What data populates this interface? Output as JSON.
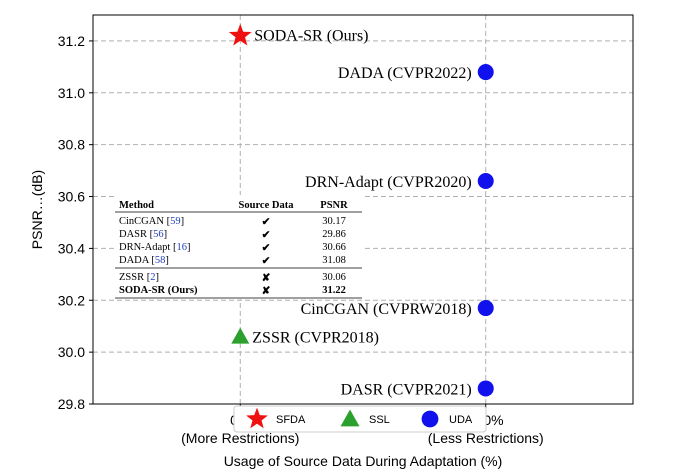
{
  "chart_data": {
    "type": "scatter",
    "xlabel": "Usage of Source Data During Adaptation (%)",
    "ylabel": "PSNR…(dB)",
    "ylim": [
      29.8,
      31.3
    ],
    "xlim": [
      -0.6,
      1.6
    ],
    "grid": true,
    "x_ticks": [
      {
        "value": 0,
        "label": "0%",
        "sublabel": "(More Restrictions)"
      },
      {
        "value": 1,
        "label": "100%",
        "sublabel": "(Less Restrictions)"
      }
    ],
    "y_ticks": [
      "29.8",
      "30.0",
      "30.2",
      "30.4",
      "30.6",
      "30.8",
      "31.0",
      "31.2"
    ],
    "legend": {
      "placement": "bottom-center",
      "entries": [
        {
          "name": "SFDA",
          "marker": "star",
          "color": "#ee1111"
        },
        {
          "name": "SSL",
          "marker": "triangle",
          "color": "#2ca02c"
        },
        {
          "name": "UDA",
          "marker": "circle",
          "color": "#1111ee"
        }
      ]
    },
    "points": [
      {
        "label": "SODA-SR (Ours)",
        "x": 0,
        "y": 31.22,
        "group": "SFDA"
      },
      {
        "label": "ZSSR (CVPR2018)",
        "x": 0,
        "y": 30.06,
        "group": "SSL"
      },
      {
        "label": "DADA (CVPR2022)",
        "x": 1,
        "y": 31.08,
        "group": "UDA"
      },
      {
        "label": "DRN-Adapt (CVPR2020)",
        "x": 1,
        "y": 30.66,
        "group": "UDA"
      },
      {
        "label": "CinCGAN (CVPRW2018)",
        "x": 1,
        "y": 30.17,
        "group": "UDA"
      },
      {
        "label": "DASR (CVPR2021)",
        "x": 1,
        "y": 29.86,
        "group": "UDA"
      }
    ]
  },
  "inset_table": {
    "headers": [
      "Method",
      "Source Data",
      "PSNR"
    ],
    "rows": [
      {
        "method": "CinCGAN",
        "ref": "59",
        "source": "✔",
        "psnr": "30.17",
        "bold": false
      },
      {
        "method": "DASR",
        "ref": "56",
        "source": "✔",
        "psnr": "29.86",
        "bold": false
      },
      {
        "method": "DRN-Adapt",
        "ref": "16",
        "source": "✔",
        "psnr": "30.66",
        "bold": false
      },
      {
        "method": "DADA",
        "ref": "58",
        "source": "✔",
        "psnr": "31.08",
        "bold": false
      },
      {
        "method": "ZSSR",
        "ref": "2",
        "source": "✘",
        "psnr": "30.06",
        "bold": false
      },
      {
        "method": "SODA-SR (Ours)",
        "ref": "",
        "source": "✘",
        "psnr": "31.22",
        "bold": true
      }
    ]
  }
}
